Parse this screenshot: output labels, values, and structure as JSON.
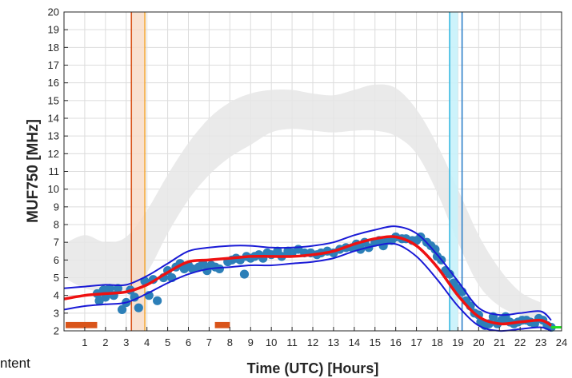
{
  "stray_text": "ntent",
  "chart_data": {
    "type": "line",
    "xlabel": "Time (UTC) [Hours]",
    "ylabel": "MUF750 [MHz]",
    "xlim": [
      0,
      24
    ],
    "ylim": [
      2,
      20
    ],
    "x_ticks": [
      1,
      2,
      3,
      4,
      5,
      6,
      7,
      8,
      9,
      10,
      11,
      12,
      13,
      14,
      15,
      16,
      17,
      18,
      19,
      20,
      21,
      22,
      23,
      24
    ],
    "y_ticks": [
      2,
      3,
      4,
      5,
      6,
      7,
      8,
      9,
      10,
      11,
      12,
      13,
      14,
      15,
      16,
      17,
      18,
      19,
      20
    ],
    "grid": true,
    "colors": {
      "fit": "#ee1111",
      "bounds": "#1a1ad6",
      "points": "#2c7fb8",
      "climatology_band": "#e6e6e6",
      "sunrise_line": "#d9541a",
      "sunrise_band": "#f7d9c4",
      "sunrise_line2": "#f2a93b",
      "sunset_band": "#c8f2fb",
      "sunset_line": "#36b8e0",
      "sunset_line2": "#2c7fc8",
      "markers": "#d9541a",
      "end_marker": "#22dd22"
    },
    "climatology_band": {
      "upper": [
        [
          0,
          6.9
        ],
        [
          1,
          7.4
        ],
        [
          2,
          7.0
        ],
        [
          3,
          7.3
        ],
        [
          4,
          8.8
        ],
        [
          5,
          10.8
        ],
        [
          6,
          12.6
        ],
        [
          7,
          14.0
        ],
        [
          8,
          14.9
        ],
        [
          9,
          15.4
        ],
        [
          10,
          15.6
        ],
        [
          11,
          15.6
        ],
        [
          12,
          15.4
        ],
        [
          13,
          15.3
        ],
        [
          14,
          15.6
        ],
        [
          15,
          15.9
        ],
        [
          16,
          15.7
        ],
        [
          17,
          14.5
        ],
        [
          18,
          12.5
        ],
        [
          19,
          10.0
        ],
        [
          20,
          7.4
        ],
        [
          21,
          5.5
        ],
        [
          22,
          4.2
        ],
        [
          23,
          3.6
        ]
      ],
      "lower": [
        [
          0,
          5.0
        ],
        [
          1,
          4.4
        ],
        [
          2,
          4.2
        ],
        [
          3,
          4.3
        ],
        [
          4,
          5.3
        ],
        [
          5,
          7.5
        ],
        [
          6,
          9.4
        ],
        [
          7,
          10.8
        ],
        [
          8,
          11.8
        ],
        [
          9,
          12.5
        ],
        [
          10,
          13.2
        ],
        [
          11,
          13.4
        ],
        [
          12,
          13.3
        ],
        [
          13,
          13.2
        ],
        [
          14,
          13.3
        ],
        [
          15,
          13.3
        ],
        [
          16,
          13.0
        ],
        [
          17,
          12.0
        ],
        [
          18,
          9.8
        ],
        [
          19,
          7.0
        ],
        [
          20,
          4.6
        ],
        [
          21,
          3.4
        ],
        [
          22,
          2.9
        ],
        [
          23,
          2.7
        ]
      ]
    },
    "series": [
      {
        "style": "fit",
        "x": [
          0,
          1,
          2,
          3,
          4,
          5,
          6,
          7,
          8,
          9,
          10,
          11,
          12,
          13,
          14,
          15,
          16,
          17,
          18,
          19,
          20,
          21,
          22,
          23,
          23.5
        ],
        "y": [
          3.8,
          4.0,
          4.1,
          4.2,
          4.6,
          5.3,
          5.9,
          6.0,
          6.1,
          6.2,
          6.2,
          6.2,
          6.3,
          6.5,
          6.9,
          7.2,
          7.3,
          6.8,
          5.6,
          4.0,
          2.8,
          2.4,
          2.5,
          2.6,
          2.3
        ]
      },
      {
        "style": "bound",
        "x": [
          0,
          1,
          2,
          3,
          4,
          5,
          6,
          7,
          8,
          9,
          10,
          11,
          12,
          13,
          14,
          15,
          16,
          17,
          18,
          19,
          20,
          21,
          22,
          23,
          23.5
        ],
        "y": [
          4.4,
          4.5,
          4.6,
          4.6,
          5.1,
          5.8,
          6.5,
          6.7,
          6.8,
          6.8,
          6.7,
          6.7,
          6.8,
          7.0,
          7.4,
          7.7,
          7.9,
          7.5,
          6.3,
          4.8,
          3.3,
          2.9,
          3.0,
          3.1,
          2.6
        ]
      },
      {
        "style": "bound",
        "x": [
          0,
          1,
          2,
          3,
          4,
          5,
          6,
          7,
          8,
          9,
          10,
          11,
          12,
          13,
          14,
          15,
          16,
          17,
          18,
          19,
          20,
          21,
          22,
          23,
          23.5
        ],
        "y": [
          3.2,
          3.4,
          3.5,
          3.6,
          4.1,
          4.7,
          5.2,
          5.5,
          5.6,
          5.7,
          5.7,
          5.8,
          5.9,
          6.1,
          6.5,
          6.8,
          6.9,
          6.2,
          4.9,
          3.4,
          2.3,
          2.0,
          2.1,
          2.2,
          2.0
        ]
      }
    ],
    "points": [
      [
        1.6,
        4.1
      ],
      [
        1.7,
        3.7
      ],
      [
        1.9,
        4.3
      ],
      [
        2.0,
        3.9
      ],
      [
        2.2,
        4.4
      ],
      [
        2.4,
        4.0
      ],
      [
        2.6,
        4.4
      ],
      [
        2.8,
        3.2
      ],
      [
        3.0,
        3.6
      ],
      [
        3.2,
        4.3
      ],
      [
        3.4,
        3.9
      ],
      [
        3.6,
        3.3
      ],
      [
        3.9,
        4.8
      ],
      [
        4.1,
        4.0
      ],
      [
        4.3,
        4.9
      ],
      [
        4.5,
        3.7
      ],
      [
        4.8,
        5.0
      ],
      [
        5.0,
        5.4
      ],
      [
        5.2,
        5.0
      ],
      [
        5.4,
        5.6
      ],
      [
        5.6,
        5.8
      ],
      [
        5.8,
        5.5
      ],
      [
        6.0,
        5.7
      ],
      [
        6.2,
        5.5
      ],
      [
        6.5,
        5.6
      ],
      [
        6.7,
        5.8
      ],
      [
        6.9,
        5.4
      ],
      [
        7.1,
        5.7
      ],
      [
        7.3,
        5.6
      ],
      [
        7.5,
        5.5
      ],
      [
        7.9,
        5.9
      ],
      [
        8.1,
        6.0
      ],
      [
        8.3,
        6.1
      ],
      [
        8.5,
        6.0
      ],
      [
        8.7,
        5.2
      ],
      [
        8.8,
        6.2
      ],
      [
        9.0,
        6.1
      ],
      [
        9.2,
        6.2
      ],
      [
        9.4,
        6.3
      ],
      [
        9.6,
        6.1
      ],
      [
        9.8,
        6.4
      ],
      [
        10.0,
        6.3
      ],
      [
        10.3,
        6.5
      ],
      [
        10.5,
        6.2
      ],
      [
        10.8,
        6.5
      ],
      [
        11.0,
        6.4
      ],
      [
        11.3,
        6.6
      ],
      [
        11.6,
        6.4
      ],
      [
        11.9,
        6.4
      ],
      [
        12.2,
        6.3
      ],
      [
        12.4,
        6.4
      ],
      [
        12.7,
        6.5
      ],
      [
        13.0,
        6.4
      ],
      [
        13.3,
        6.6
      ],
      [
        13.6,
        6.7
      ],
      [
        13.9,
        6.7
      ],
      [
        14.1,
        6.9
      ],
      [
        14.3,
        6.6
      ],
      [
        14.5,
        7.0
      ],
      [
        14.7,
        6.7
      ],
      [
        15.0,
        7.0
      ],
      [
        15.2,
        7.1
      ],
      [
        15.4,
        6.8
      ],
      [
        15.6,
        7.1
      ],
      [
        15.8,
        7.1
      ],
      [
        16.0,
        7.3
      ],
      [
        16.3,
        7.2
      ],
      [
        16.5,
        7.2
      ],
      [
        16.8,
        7.1
      ],
      [
        17.0,
        7.1
      ],
      [
        17.2,
        7.3
      ],
      [
        17.5,
        7.0
      ],
      [
        17.7,
        6.8
      ],
      [
        17.9,
        6.6
      ],
      [
        18.0,
        6.2
      ],
      [
        18.2,
        6.0
      ],
      [
        18.4,
        5.4
      ],
      [
        18.6,
        5.2
      ],
      [
        18.8,
        4.7
      ],
      [
        19.0,
        4.4
      ],
      [
        19.2,
        4.2
      ],
      [
        19.4,
        3.7
      ],
      [
        19.6,
        3.4
      ],
      [
        19.8,
        3.0
      ],
      [
        20.0,
        2.9
      ],
      [
        20.1,
        2.5
      ],
      [
        20.3,
        2.3
      ],
      [
        20.5,
        2.4
      ],
      [
        20.7,
        2.8
      ],
      [
        20.9,
        2.4
      ],
      [
        21.1,
        2.6
      ],
      [
        21.3,
        2.8
      ],
      [
        21.5,
        2.5
      ],
      [
        21.7,
        2.4
      ],
      [
        21.9,
        2.5
      ],
      [
        22.1,
        2.6
      ],
      [
        22.3,
        2.6
      ],
      [
        22.5,
        2.5
      ],
      [
        22.7,
        2.4
      ],
      [
        22.9,
        2.7
      ],
      [
        23.1,
        2.6
      ],
      [
        23.3,
        2.3
      ],
      [
        23.5,
        2.2
      ]
    ],
    "vertical_markers": {
      "sunrise": {
        "line": 3.25,
        "band": [
          3.25,
          3.9
        ],
        "line2": 3.9
      },
      "sunset": {
        "band": [
          18.6,
          19.0
        ],
        "line": 18.6,
        "line2": 19.2
      }
    },
    "bottom_markers": [
      [
        0.0,
        1.6
      ],
      [
        7.2,
        8.0
      ]
    ],
    "end_marker": [
      23.5,
      24
    ]
  }
}
